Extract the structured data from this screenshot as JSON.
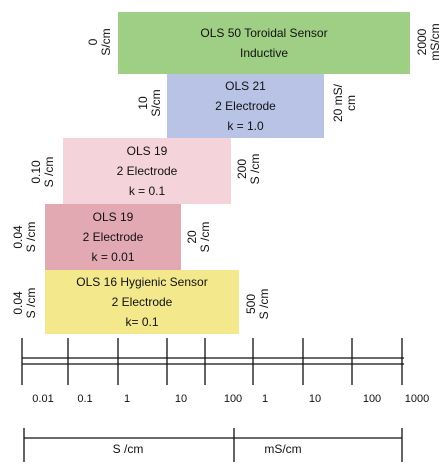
{
  "sensors": [
    {
      "lines": [
        "OLS 50 Toroidal Sensor",
        "Inductive"
      ],
      "low": [
        "0",
        "S/cm"
      ],
      "high": [
        "2000",
        "mS/cm"
      ],
      "color": "#9fcf84"
    },
    {
      "lines": [
        "OLS 21",
        "2 Electrode",
        "k = 1.0"
      ],
      "low": [
        "10",
        "S/cm"
      ],
      "high": [
        "20 mS/",
        "cm"
      ],
      "color": "#b8c3e6"
    },
    {
      "lines": [
        "OLS 19",
        "2 Electrode",
        "k = 0.1"
      ],
      "low": [
        "0.10",
        "S /cm"
      ],
      "high": [
        "200",
        "S /cm"
      ],
      "color": "#f4d4da"
    },
    {
      "lines": [
        "OLS 19",
        "2 Electrode",
        "k = 0.01"
      ],
      "low": [
        "0.04",
        "S /cm"
      ],
      "high": [
        "20",
        "S /cm"
      ],
      "color": "#e3a9b3"
    },
    {
      "lines": [
        "OLS 16 Hygienic Sensor",
        "2 Electrode",
        "k= 0.1"
      ],
      "low": [
        "0.04",
        "S /cm"
      ],
      "high": [
        "500",
        "S /cm"
      ],
      "color": "#f4e88c"
    }
  ],
  "scale": {
    "ticks": [
      "0.01",
      "0.1",
      "1",
      "10",
      "100",
      "1",
      "10",
      "100",
      "1000"
    ],
    "units": [
      "S /cm",
      "mS/cm"
    ]
  }
}
